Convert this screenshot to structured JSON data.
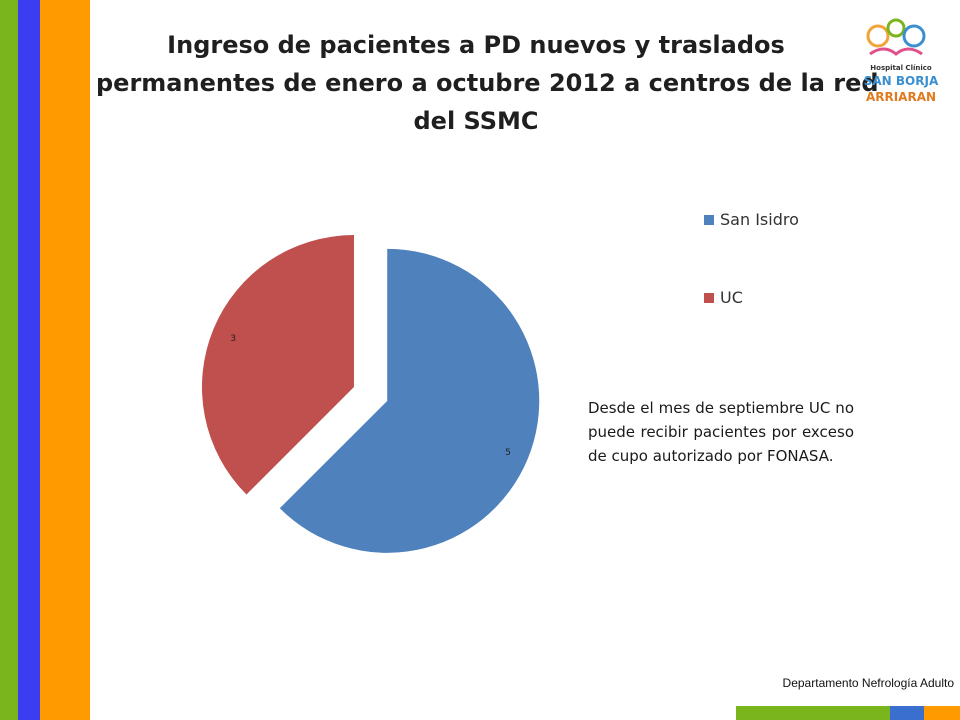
{
  "slide": {
    "title_lines": [
      "Ingreso de pacientes a PD nuevos y traslados",
      "permanentes de enero a octubre 2012 a centros de la red",
      "del SSMC"
    ],
    "note": "Desde el mes de septiembre UC no puede recibir pacientes por exceso de cupo autorizado por FONASA.",
    "footer": "Departamento Nefrología Adulto",
    "logo": {
      "line1": "Hospital Clínico",
      "line2": "SAN BORJA",
      "line3": "ARRIARAN"
    },
    "colors": {
      "stripe_green": "#7ab51d",
      "stripe_blue": "#3a3df0",
      "stripe_orange": "#ff9a00"
    }
  },
  "chart_data": {
    "type": "pie",
    "title": "",
    "categories": [
      "San Isidro",
      "UC"
    ],
    "values": [
      5,
      3
    ],
    "colors": [
      "#4f81bd",
      "#c0504d"
    ],
    "data_labels": [
      "5",
      "3"
    ],
    "exploded": true,
    "legend_position": "right"
  }
}
